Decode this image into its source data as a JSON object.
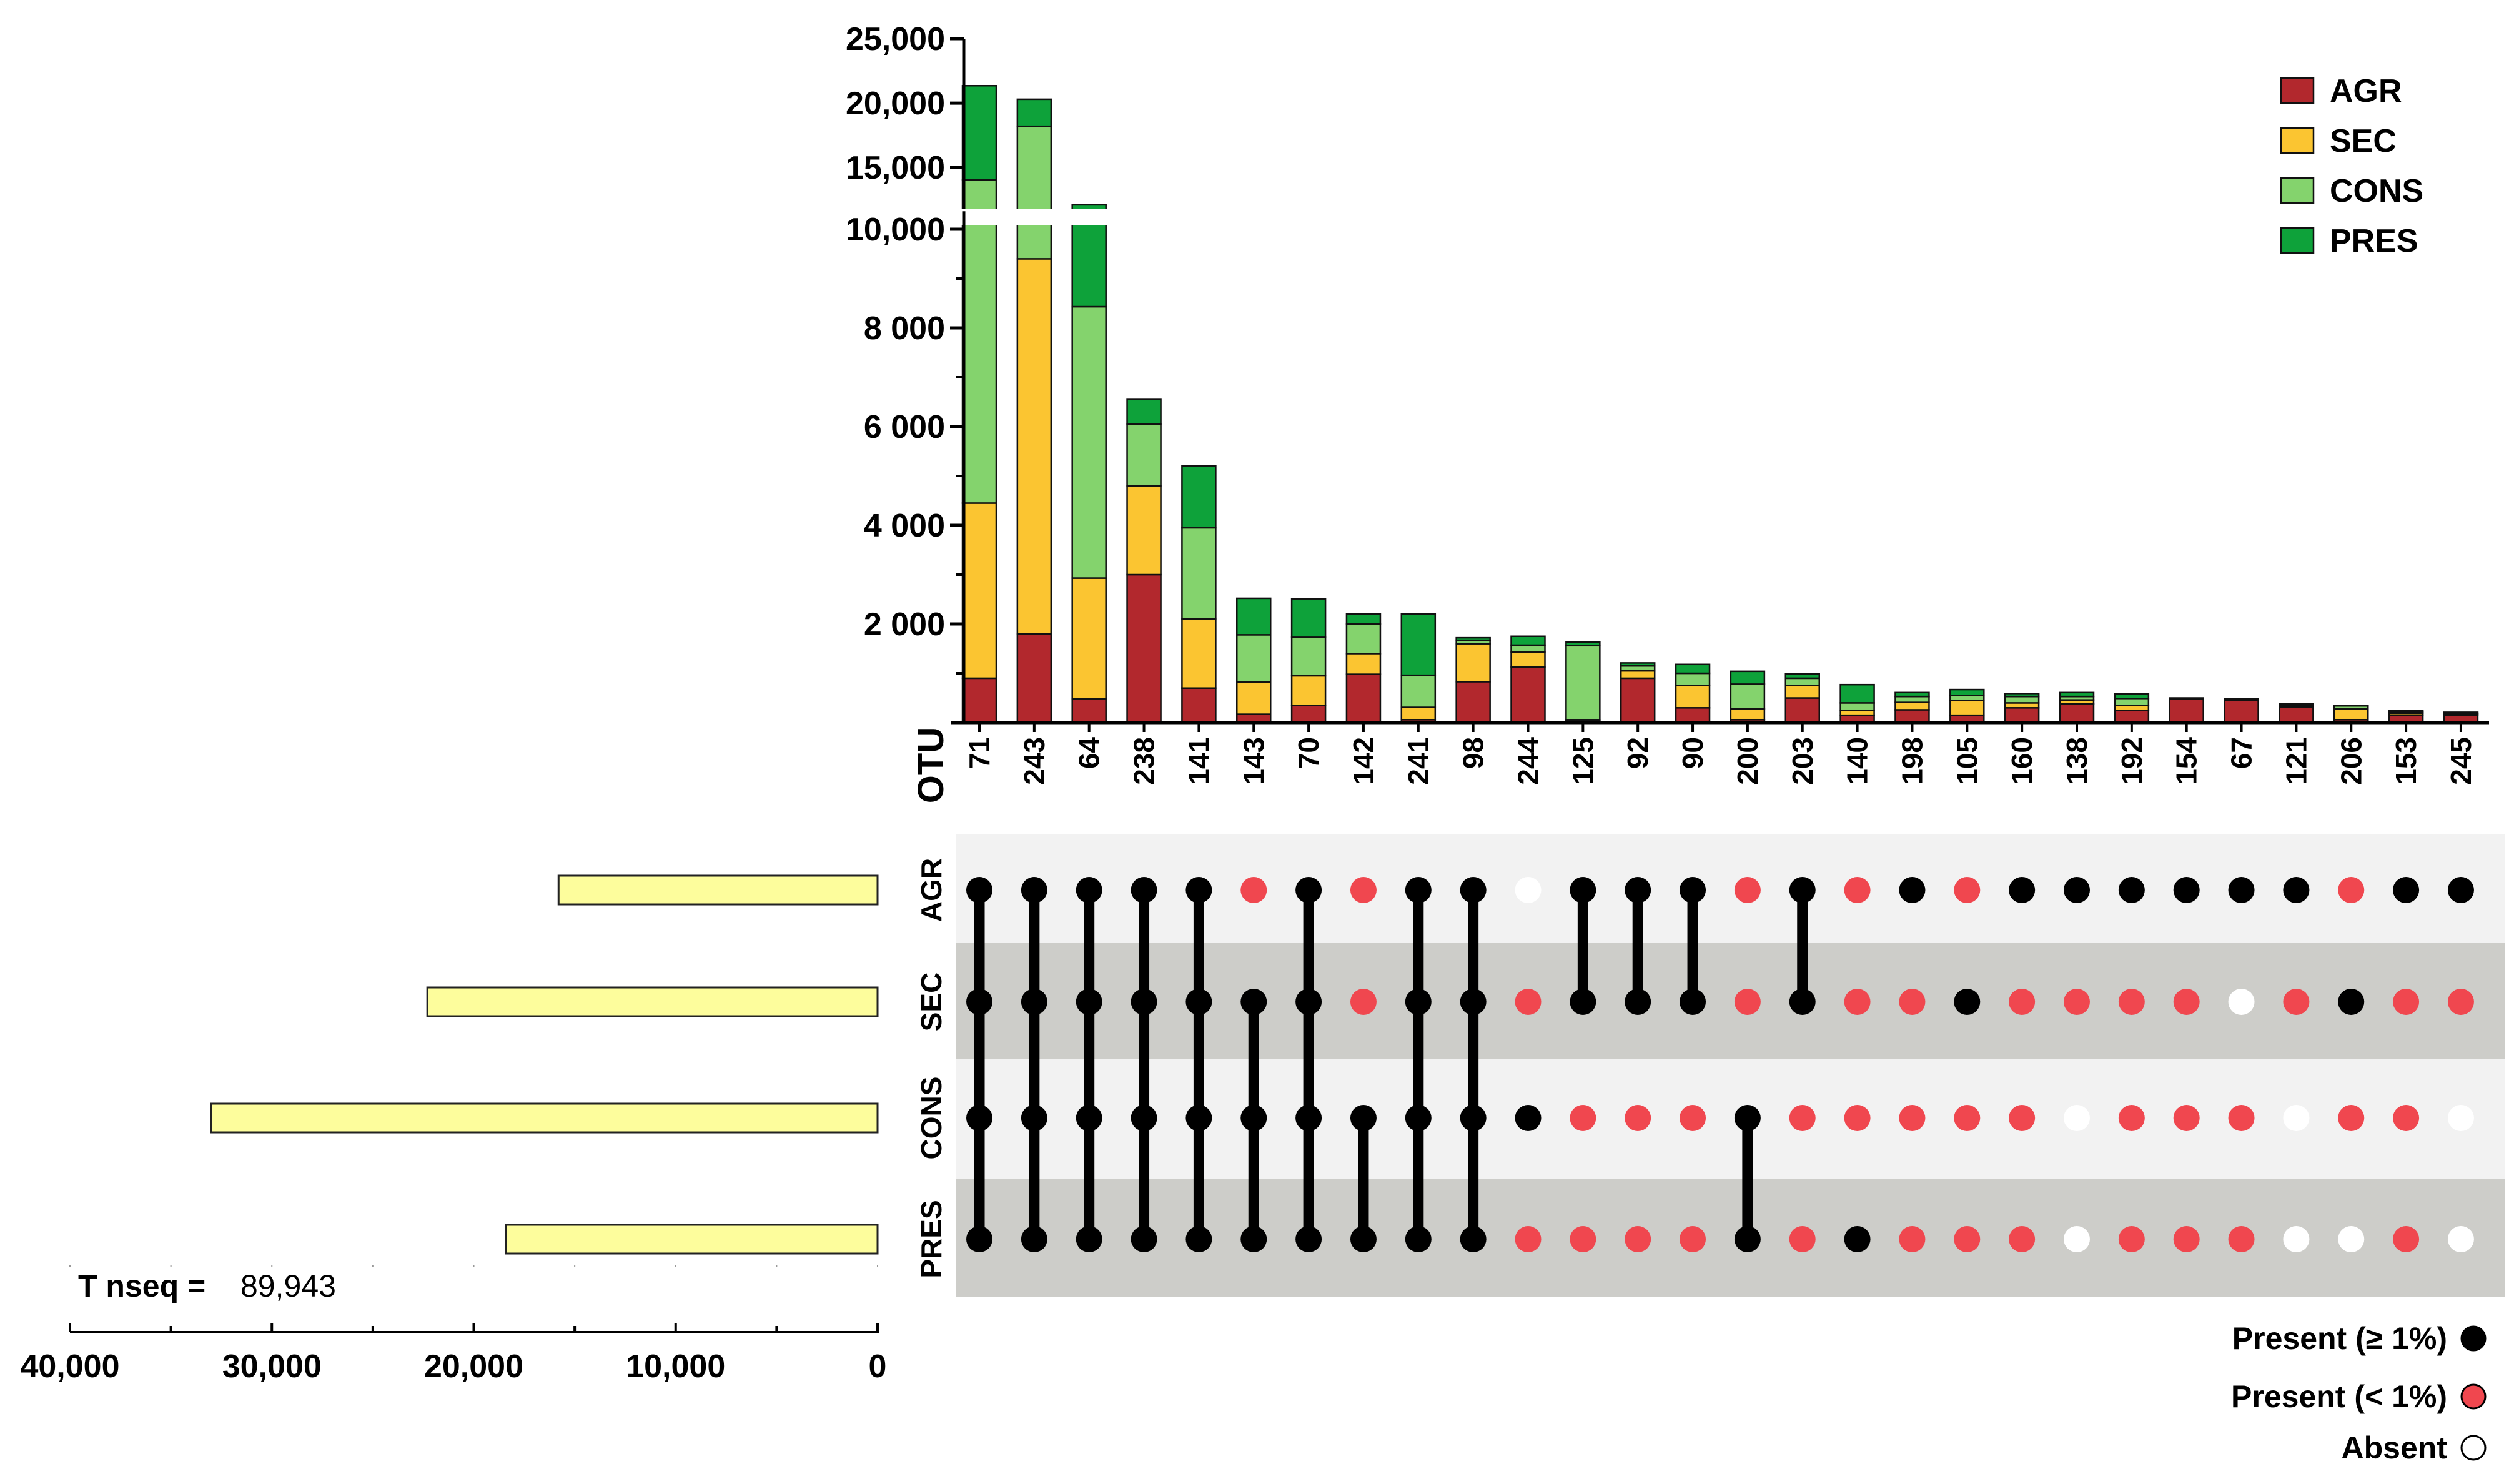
{
  "chart_data": {
    "type": "upset",
    "title": "",
    "xlabel": "OTU",
    "ylim": [
      0,
      25000
    ],
    "y_break": [
      10300,
      12000
    ],
    "yticks": [
      {
        "value": 2000,
        "label": "2 000"
      },
      {
        "value": 4000,
        "label": "4 000"
      },
      {
        "value": 6000,
        "label": "6 000"
      },
      {
        "value": 8000,
        "label": "8 000"
      },
      {
        "value": 10000,
        "label": "10,000"
      },
      {
        "value": 15000,
        "label": "15,000"
      },
      {
        "value": 20000,
        "label": "20,000"
      },
      {
        "value": 25000,
        "label": "25,000"
      }
    ],
    "categories": [
      "71",
      "243",
      "64",
      "238",
      "141",
      "143",
      "70",
      "142",
      "241",
      "98",
      "244",
      "125",
      "92",
      "90",
      "200",
      "203",
      "140",
      "198",
      "105",
      "160",
      "138",
      "192",
      "154",
      "67",
      "121",
      "206",
      "153",
      "245"
    ],
    "series": [
      {
        "name": "AGR",
        "color": "#b2282d",
        "values": [
          900,
          1800,
          480,
          3000,
          700,
          170,
          350,
          980,
          60,
          830,
          1130,
          30,
          900,
          300,
          60,
          500,
          150,
          260,
          150,
          300,
          380,
          250,
          480,
          450,
          320,
          60,
          150,
          150
        ]
      },
      {
        "name": "SEC",
        "color": "#fbc531",
        "values": [
          3550,
          7600,
          2450,
          1800,
          1400,
          650,
          600,
          420,
          250,
          770,
          300,
          30,
          150,
          450,
          220,
          250,
          100,
          150,
          300,
          100,
          80,
          100,
          0,
          0,
          20,
          220,
          40,
          20
        ]
      },
      {
        "name": "CONS",
        "color": "#84d36d",
        "values": [
          9600,
          8800,
          5500,
          1250,
          1850,
          960,
          780,
          600,
          650,
          70,
          140,
          1500,
          100,
          250,
          500,
          150,
          150,
          120,
          100,
          130,
          70,
          140,
          10,
          20,
          20,
          60,
          30,
          20
        ]
      },
      {
        "name": "PRES",
        "color": "#0ea23a",
        "values": [
          7300,
          2100,
          3670,
          500,
          1250,
          740,
          780,
          200,
          1240,
          50,
          180,
          70,
          60,
          180,
          260,
          90,
          370,
          80,
          120,
          60,
          80,
          90,
          10,
          20,
          20,
          10,
          20,
          20
        ]
      }
    ],
    "legend_position": "top-right",
    "sets": [
      "AGR",
      "SEC",
      "CONS",
      "PRES"
    ],
    "set_sizes": [
      15800,
      22300,
      33000,
      18400
    ],
    "set_axis_ticks": [
      "40,000",
      "30,000",
      "20,000",
      "10,000",
      "0"
    ],
    "set_axis_max": 40000,
    "matrix": [
      [
        "P",
        "P",
        "P",
        "P"
      ],
      [
        "P",
        "P",
        "P",
        "P"
      ],
      [
        "P",
        "P",
        "P",
        "P"
      ],
      [
        "P",
        "P",
        "P",
        "P"
      ],
      [
        "P",
        "P",
        "P",
        "P"
      ],
      [
        "p",
        "P",
        "P",
        "P"
      ],
      [
        "P",
        "P",
        "P",
        "P"
      ],
      [
        "p",
        "p",
        "P",
        "P"
      ],
      [
        "P",
        "P",
        "P",
        "P"
      ],
      [
        "P",
        "P",
        "P",
        "P"
      ],
      [
        "A",
        "p",
        "P",
        "p"
      ],
      [
        "P",
        "P",
        "p",
        "p"
      ],
      [
        "P",
        "P",
        "p",
        "p"
      ],
      [
        "P",
        "P",
        "p",
        "p"
      ],
      [
        "p",
        "p",
        "P",
        "P"
      ],
      [
        "P",
        "P",
        "p",
        "p"
      ],
      [
        "p",
        "p",
        "p",
        "P"
      ],
      [
        "P",
        "p",
        "p",
        "p"
      ],
      [
        "p",
        "P",
        "p",
        "p"
      ],
      [
        "P",
        "p",
        "p",
        "p"
      ],
      [
        "P",
        "p",
        "A",
        "A"
      ],
      [
        "P",
        "p",
        "p",
        "p"
      ],
      [
        "P",
        "p",
        "p",
        "p"
      ],
      [
        "P",
        "A",
        "p",
        "p"
      ],
      [
        "P",
        "p",
        "A",
        "A"
      ],
      [
        "p",
        "P",
        "p",
        "A"
      ],
      [
        "P",
        "p",
        "p",
        "p"
      ],
      [
        "P",
        "p",
        "A",
        "A"
      ]
    ],
    "connectors": [
      [
        0,
        3
      ],
      [
        0,
        3
      ],
      [
        0,
        3
      ],
      [
        0,
        3
      ],
      [
        0,
        3
      ],
      [
        1,
        3
      ],
      [
        0,
        3
      ],
      [
        2,
        3
      ],
      [
        0,
        3
      ],
      [
        0,
        3
      ],
      null,
      [
        0,
        1
      ],
      [
        0,
        1
      ],
      [
        0,
        1
      ],
      [
        2,
        3
      ],
      [
        0,
        1
      ],
      null,
      null,
      null,
      null,
      null,
      null,
      null,
      null,
      null,
      null,
      null,
      null
    ],
    "total_label": "T nseq =",
    "total_value": "89,943",
    "presence_legend": [
      {
        "label": "Present (≥ 1%)",
        "color": "#000000"
      },
      {
        "label": "Present (< 1%)",
        "color": "#f0474f"
      },
      {
        "label": "Absent",
        "color": "#ffffff"
      }
    ]
  }
}
